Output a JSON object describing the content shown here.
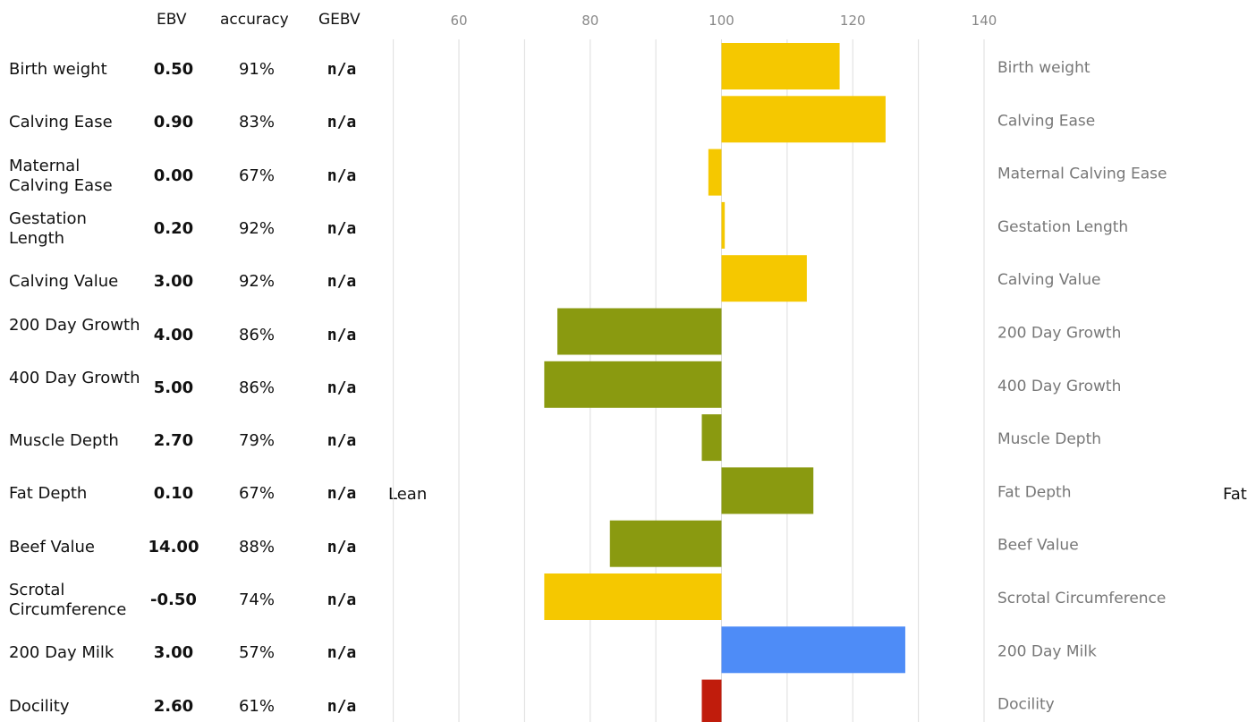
{
  "table": {
    "headers": {
      "ebv": "EBV",
      "accuracy": "accuracy",
      "gebv": "GEBV"
    },
    "rows": [
      {
        "name": "Birth weight",
        "ebv": "0.50",
        "accuracy": "91%",
        "gebv": "n/a"
      },
      {
        "name": "Calving Ease",
        "ebv": "0.90",
        "accuracy": "83%",
        "gebv": "n/a"
      },
      {
        "name": "Maternal Calving Ease",
        "ebv": "0.00",
        "accuracy": "67%",
        "gebv": "n/a"
      },
      {
        "name": "Gestation Length",
        "ebv": "0.20",
        "accuracy": "92%",
        "gebv": "n/a"
      },
      {
        "name": "Calving Value",
        "ebv": "3.00",
        "accuracy": "92%",
        "gebv": "n/a"
      },
      {
        "name": "200 Day Growth",
        "ebv": "4.00",
        "accuracy": "86%",
        "gebv": "n/a"
      },
      {
        "name": "400 Day Growth",
        "ebv": "5.00",
        "accuracy": "86%",
        "gebv": "n/a"
      },
      {
        "name": "Muscle Depth",
        "ebv": "2.70",
        "accuracy": "79%",
        "gebv": "n/a"
      },
      {
        "name": "Fat Depth",
        "ebv": "0.10",
        "accuracy": "67%",
        "gebv": "n/a"
      },
      {
        "name": "Beef Value",
        "ebv": "14.00",
        "accuracy": "88%",
        "gebv": "n/a"
      },
      {
        "name": "Scrotal Circumference",
        "ebv": "-0.50",
        "accuracy": "74%",
        "gebv": "n/a"
      },
      {
        "name": "200 Day Milk",
        "ebv": "3.00",
        "accuracy": "57%",
        "gebv": "n/a"
      },
      {
        "name": "Docility",
        "ebv": "2.60",
        "accuracy": "61%",
        "gebv": "n/a"
      }
    ]
  },
  "labels": {
    "left": "Lean",
    "right": "Fat"
  },
  "chart_data": {
    "type": "bar",
    "orientation": "horizontal",
    "xlim": [
      50,
      140
    ],
    "baseline": 100,
    "xticks": [
      60,
      80,
      100,
      120,
      140
    ],
    "grid": true,
    "categories": [
      "Birth weight",
      "Calving Ease",
      "Maternal Calving Ease",
      "Gestation Length",
      "Calving Value",
      "200 Day Growth",
      "400 Day Growth",
      "Muscle Depth",
      "Fat Depth",
      "Beef Value",
      "Scrotal Circumference",
      "200 Day Milk",
      "Docility"
    ],
    "values": [
      118,
      125,
      98,
      100.5,
      113,
      75,
      73,
      97,
      114,
      83,
      73,
      128,
      97
    ],
    "colors": [
      "#f5c800",
      "#f5c800",
      "#f5c800",
      "#f5c800",
      "#f5c800",
      "#8a9a10",
      "#8a9a10",
      "#8a9a10",
      "#8a9a10",
      "#8a9a10",
      "#f5c800",
      "#4e8cf7",
      "#c01c0c"
    ],
    "grid_color": "#dddddd",
    "tick_color": "#888888",
    "category_label_color": "#777777"
  }
}
